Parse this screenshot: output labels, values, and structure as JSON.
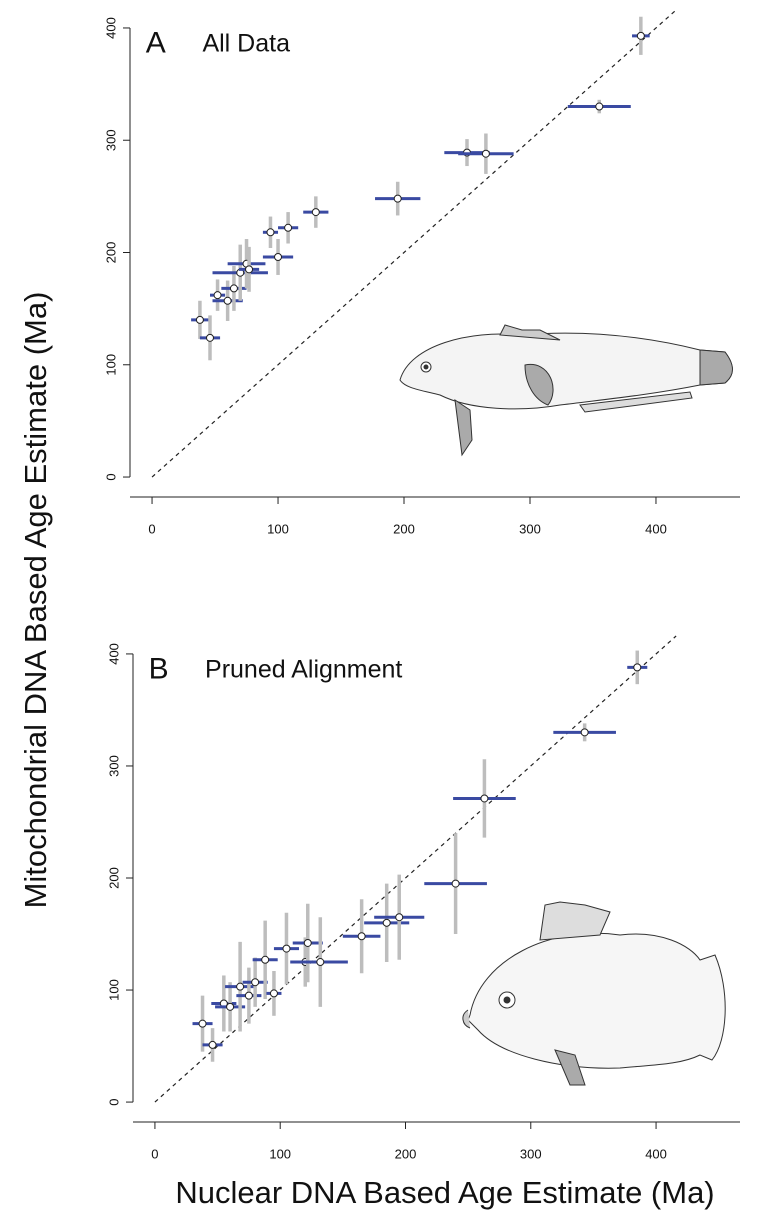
{
  "y_label": "Mitochondrial DNA Based Age Estimate (Ma)",
  "x_label": "Nuclear DNA Based Age Estimate (Ma)",
  "chart_data": [
    {
      "type": "scatter",
      "panel_label": "A",
      "title": "All Data",
      "xlim": [
        -17.5,
        466.7
      ],
      "ylim": [
        -16,
        416
      ],
      "xticks": [
        0,
        100,
        200,
        300,
        400
      ],
      "yticks": [
        0,
        100,
        200,
        300,
        400
      ],
      "series": [
        {
          "x": [
            38,
            46,
            52,
            60,
            65,
            70,
            75,
            77,
            94,
            100,
            108,
            130,
            195,
            250,
            265,
            355,
            388
          ],
          "xerr": [
            7,
            8,
            6,
            12,
            10,
            22,
            15,
            8,
            6,
            12,
            8,
            10,
            18,
            18,
            22,
            25,
            7
          ],
          "values": [
            140,
            124,
            162,
            157,
            168,
            182,
            190,
            185,
            218,
            196,
            222,
            236,
            248,
            289,
            288,
            330,
            393
          ],
          "yerr": [
            17,
            20,
            14,
            18,
            20,
            25,
            22,
            20,
            14,
            16,
            14,
            14,
            15,
            12,
            18,
            6,
            17
          ],
          "color": "#3a4aa2",
          "error_color": "#bdbdbd"
        }
      ]
    },
    {
      "type": "scatter",
      "panel_label": "B",
      "title": "Pruned Alignment",
      "xlim": [
        -17.5,
        467
      ],
      "ylim": [
        -16,
        416
      ],
      "xticks": [
        0,
        100,
        200,
        300,
        400
      ],
      "yticks": [
        0,
        100,
        200,
        300,
        400
      ],
      "series": [
        {
          "x": [
            38,
            46,
            55,
            60,
            68,
            75,
            80,
            88,
            95,
            105,
            120,
            122,
            132,
            165,
            185,
            195,
            240,
            263,
            343,
            385
          ],
          "xerr": [
            8,
            8,
            10,
            12,
            12,
            10,
            10,
            10,
            6,
            10,
            12,
            12,
            22,
            15,
            18,
            20,
            25,
            25,
            25,
            8
          ],
          "values": [
            70,
            51,
            88,
            85,
            103,
            95,
            107,
            127,
            97,
            137,
            125,
            142,
            125,
            148,
            160,
            165,
            195,
            271,
            330,
            388
          ],
          "yerr": [
            25,
            15,
            25,
            22,
            40,
            25,
            22,
            35,
            20,
            32,
            22,
            35,
            40,
            33,
            35,
            38,
            45,
            35,
            8,
            15
          ],
          "color": "#3a4aa2",
          "error_color": "#bdbdbd"
        }
      ]
    }
  ]
}
